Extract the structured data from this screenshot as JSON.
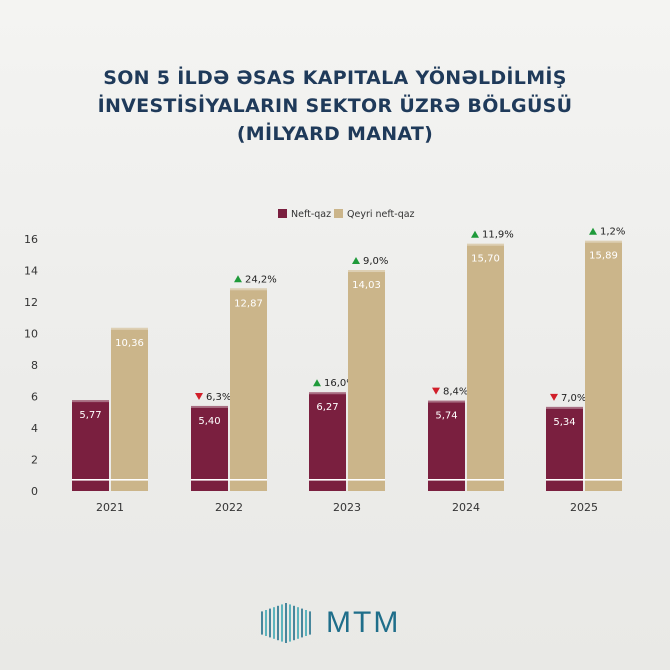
{
  "title": {
    "line1": "SON 5 İLDƏ ƏSAS KAPITALA YÖNƏLDİLMİŞ",
    "line2": "İNVESTİSİYALARIN SEKTOR ÜZRƏ BÖLGÜSÜ",
    "line3": "(MİLYARD MANAT)"
  },
  "colors": {
    "neft": "#7a1f3f",
    "qeyri": "#cbb58a",
    "up": "#1f9a3a",
    "down": "#d11f2a",
    "title": "#1f3a5a"
  },
  "chart_data": {
    "type": "bar",
    "categories": [
      "2021",
      "2022",
      "2023",
      "2024",
      "2025"
    ],
    "series": [
      {
        "name": "Neft-qaz",
        "values": [
          5.77,
          5.4,
          6.27,
          5.74,
          5.34
        ],
        "labels": [
          "5,77",
          "5,40",
          "6,27",
          "5,74",
          "5,34"
        ],
        "changes": [
          null,
          "6,3%",
          "16,0%",
          "8,4%",
          "7,0%"
        ],
        "directions": [
          null,
          "down",
          "up",
          "down",
          "down"
        ]
      },
      {
        "name": "Qeyri neft-qaz",
        "values": [
          10.36,
          12.87,
          14.03,
          15.7,
          15.89
        ],
        "labels": [
          "10,36",
          "12,87",
          "14,03",
          "15,70",
          "15,89"
        ],
        "changes": [
          null,
          "24,2%",
          "9,0%",
          "11,9%",
          "1,2%"
        ],
        "directions": [
          null,
          "up",
          "up",
          "up",
          "up"
        ]
      }
    ],
    "yticks": [
      "0",
      "2",
      "4",
      "6",
      "8",
      "10",
      "12",
      "14",
      "16"
    ],
    "ylim": [
      0,
      16
    ],
    "legend_position": "top-center"
  },
  "logo": {
    "text": "MTM"
  }
}
